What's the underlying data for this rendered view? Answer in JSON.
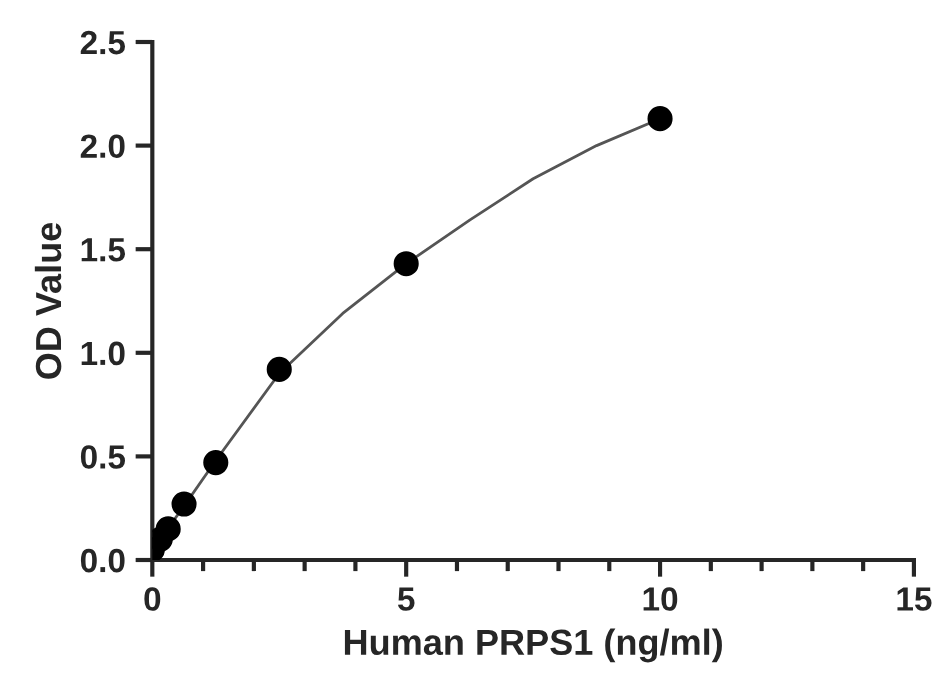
{
  "chart_data": {
    "type": "scatter",
    "xlabel": "Human PRPS1 (ng/ml)",
    "ylabel": "OD Value",
    "x": [
      0,
      0.156,
      0.3125,
      0.625,
      1.25,
      2.5,
      5,
      10
    ],
    "series": [
      {
        "color": "#000000",
        "values": [
          0.05,
          0.1,
          0.15,
          0.27,
          0.47,
          0.92,
          1.43,
          2.13
        ],
        "marker": "circle"
      },
      {
        "type": "line",
        "color": "#555555",
        "x": [
          0,
          0.625,
          1.25,
          2.5,
          3.75,
          5,
          6.25,
          7.5,
          8.75,
          10
        ],
        "values": [
          0.05,
          0.26,
          0.48,
          0.9,
          1.19,
          1.43,
          1.64,
          1.84,
          2.0,
          2.13
        ],
        "marker": "none",
        "line_style": "solid"
      }
    ],
    "xlim": [
      0,
      15
    ],
    "ylim": [
      0,
      2.5
    ],
    "xticks": [
      0,
      {
        "value": 1,
        "label": null
      },
      {
        "value": 2,
        "label": null
      },
      {
        "value": 3,
        "label": null
      },
      {
        "value": 4,
        "label": null
      },
      5,
      {
        "value": 6,
        "label": null
      },
      {
        "value": 7,
        "label": null
      },
      {
        "value": 8,
        "label": null
      },
      {
        "value": 9,
        "label": null
      },
      10,
      {
        "value": 11,
        "label": null
      },
      {
        "value": 12,
        "label": null
      },
      {
        "value": 13,
        "label": null
      },
      {
        "value": 14,
        "label": null
      },
      15
    ],
    "yticks": [
      {
        "value": 0,
        "label": "0.0"
      },
      0.5,
      {
        "value": 1,
        "label": "1.0"
      },
      1.5,
      {
        "value": 2,
        "label": "2.0"
      },
      2.5
    ],
    "grid": false,
    "legend": false
  }
}
